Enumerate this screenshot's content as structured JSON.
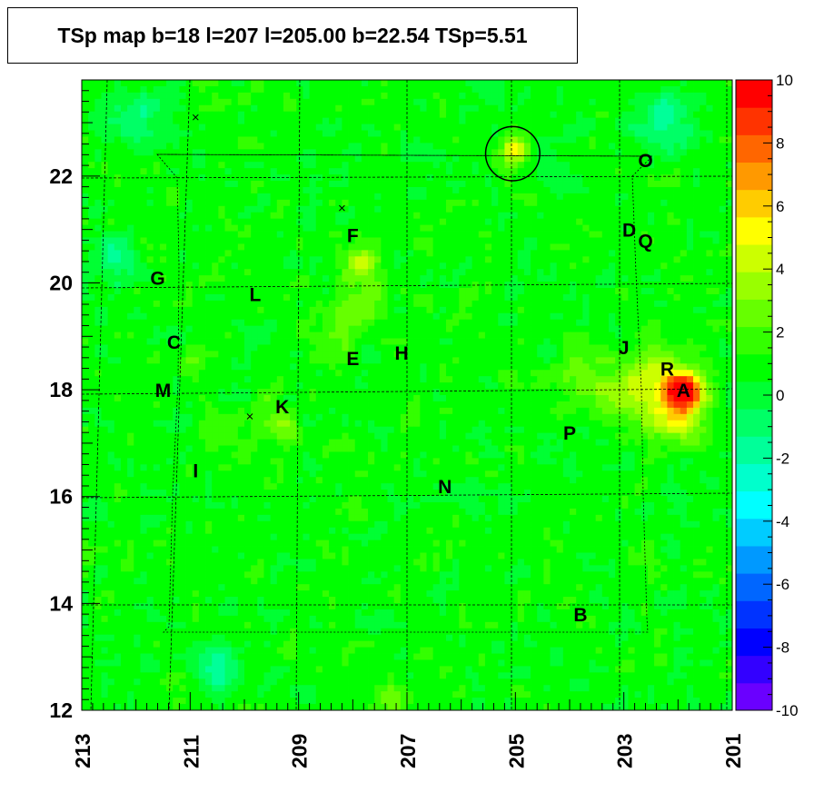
{
  "chart_data": {
    "type": "heatmap",
    "title": "TSp map b=18 l=207 l=205.00 b=22.54 TSp=5.51",
    "x_axis": {
      "range": [
        213,
        201
      ],
      "reversed": true,
      "ticks": [
        213,
        211,
        209,
        207,
        205,
        203,
        201
      ]
    },
    "y_axis": {
      "range": [
        12,
        23.8
      ],
      "ticks": [
        12,
        14,
        16,
        18,
        20,
        22
      ]
    },
    "color_scale": {
      "range": [
        -10,
        10
      ],
      "ticks": [
        10,
        8,
        6,
        4,
        2,
        0,
        -2,
        -4,
        -6,
        -8,
        -10
      ],
      "colors": [
        "#6a00ff",
        "#3300ff",
        "#0000ff",
        "#0033ff",
        "#0066ff",
        "#0099ff",
        "#00ccff",
        "#00ffff",
        "#00ffcc",
        "#00ff99",
        "#00ff66",
        "#00ff33",
        "#00ff00",
        "#33ff00",
        "#66ff00",
        "#99ff00",
        "#ccff00",
        "#ffff00",
        "#ffcc00",
        "#ff9900",
        "#ff6600",
        "#ff3300",
        "#ff0000"
      ]
    },
    "background_value": 0.8,
    "hotspots": [
      {
        "l": 201.9,
        "b": 18.0,
        "value": 10,
        "sigma": 0.22
      },
      {
        "l": 202.1,
        "b": 17.6,
        "value": 5.5,
        "sigma": 0.4
      },
      {
        "l": 202.4,
        "b": 18.4,
        "value": 3.5,
        "sigma": 0.35
      },
      {
        "l": 203.0,
        "b": 17.9,
        "value": 3.0,
        "sigma": 0.35
      },
      {
        "l": 203.7,
        "b": 18.3,
        "value": 2.5,
        "sigma": 0.4
      },
      {
        "l": 205.0,
        "b": 22.5,
        "value": 5.0,
        "sigma": 0.18
      },
      {
        "l": 207.8,
        "b": 20.4,
        "value": 4.5,
        "sigma": 0.2
      },
      {
        "l": 207.8,
        "b": 19.7,
        "value": 2.5,
        "sigma": 0.35
      },
      {
        "l": 208.3,
        "b": 19.2,
        "value": 2.0,
        "sigma": 0.4
      },
      {
        "l": 209.4,
        "b": 17.4,
        "value": 3.0,
        "sigma": 0.25
      },
      {
        "l": 210.3,
        "b": 17.3,
        "value": 2.0,
        "sigma": 0.3
      },
      {
        "l": 210.9,
        "b": 18.6,
        "value": 2.5,
        "sigma": 0.2
      },
      {
        "l": 207.3,
        "b": 12.2,
        "value": 2.5,
        "sigma": 0.2
      },
      {
        "l": 212.9,
        "b": 15.1,
        "value": 2.0,
        "sigma": 0.25
      },
      {
        "l": 202.2,
        "b": 23.0,
        "value": -2.0,
        "sigma": 0.35
      },
      {
        "l": 212.4,
        "b": 20.5,
        "value": -1.5,
        "sigma": 0.3
      },
      {
        "l": 210.5,
        "b": 12.8,
        "value": -1.5,
        "sigma": 0.3
      },
      {
        "l": 212.0,
        "b": 23.1,
        "value": -1.2,
        "sigma": 0.4
      }
    ],
    "sources": [
      {
        "label": "A",
        "l": 201.9,
        "b": 18.0
      },
      {
        "label": "B",
        "l": 203.8,
        "b": 13.8
      },
      {
        "label": "C",
        "l": 211.3,
        "b": 18.9
      },
      {
        "label": "D",
        "l": 202.9,
        "b": 21.0
      },
      {
        "label": "E",
        "l": 208.0,
        "b": 18.6
      },
      {
        "label": "F",
        "l": 208.0,
        "b": 20.9
      },
      {
        "label": "G",
        "l": 211.6,
        "b": 20.1
      },
      {
        "label": "H",
        "l": 207.1,
        "b": 18.7
      },
      {
        "label": "I",
        "l": 210.9,
        "b": 16.5
      },
      {
        "label": "J",
        "l": 203.0,
        "b": 18.8
      },
      {
        "label": "K",
        "l": 209.3,
        "b": 17.7
      },
      {
        "label": "L",
        "l": 209.8,
        "b": 19.8
      },
      {
        "label": "M",
        "l": 211.5,
        "b": 18.0
      },
      {
        "label": "N",
        "l": 206.3,
        "b": 16.2
      },
      {
        "label": "O",
        "l": 202.6,
        "b": 22.3
      },
      {
        "label": "P",
        "l": 204.0,
        "b": 17.2
      },
      {
        "label": "Q",
        "l": 202.6,
        "b": 20.8
      },
      {
        "label": "R",
        "l": 202.2,
        "b": 18.4
      }
    ],
    "circle": {
      "l": 205.05,
      "b": 22.42,
      "radius_deg": 0.5
    },
    "cross_markers": [
      {
        "l": 208.2,
        "b": 21.4
      },
      {
        "l": 210.9,
        "b": 23.1
      },
      {
        "l": 209.9,
        "b": 17.5
      }
    ]
  }
}
